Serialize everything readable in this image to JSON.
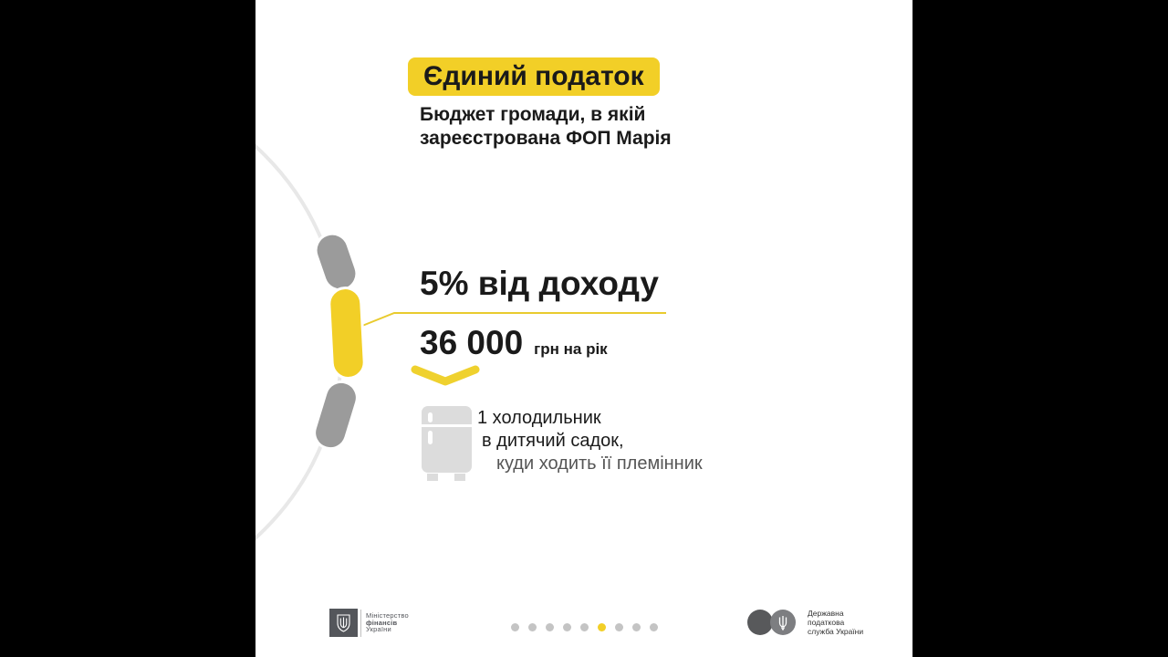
{
  "header": {
    "title": "Єдиний податок",
    "subtitle_line1": "Бюджет громади, в якій",
    "subtitle_line2": "зареєстрована ФОП Марія"
  },
  "tax": {
    "rate": "5% від доходу",
    "amount": "36 000",
    "amount_unit": "грн на рік"
  },
  "example": {
    "line1": "1 холодильник",
    "line2": "в дитячий садок,",
    "line3": "куди ходить її племінник"
  },
  "pagination": {
    "total": 9,
    "active_index": 5
  },
  "footer": {
    "minfin": {
      "line1": "Міністерство",
      "line2": "фінансів",
      "line3": "України"
    },
    "tax_service": {
      "line1": "Державна",
      "line2": "податкова",
      "line3": "служба України"
    }
  },
  "icons": {
    "fridge": "refrigerator-icon",
    "chevron": "chevron-down-icon",
    "minfin_emblem": "trident-shield-icon",
    "tax_emblem": "trident-icon"
  },
  "colors": {
    "accent_yellow": "#F2CF27",
    "dark_text": "#1A1A1A",
    "gray_pill": "#9B9B9B",
    "arc_gray": "#E8E8E8",
    "fridge_gray": "#DCDCDC",
    "dot_gray": "#C4C4C4",
    "footer_gray": "#54565B",
    "letterbox": "#000000"
  }
}
